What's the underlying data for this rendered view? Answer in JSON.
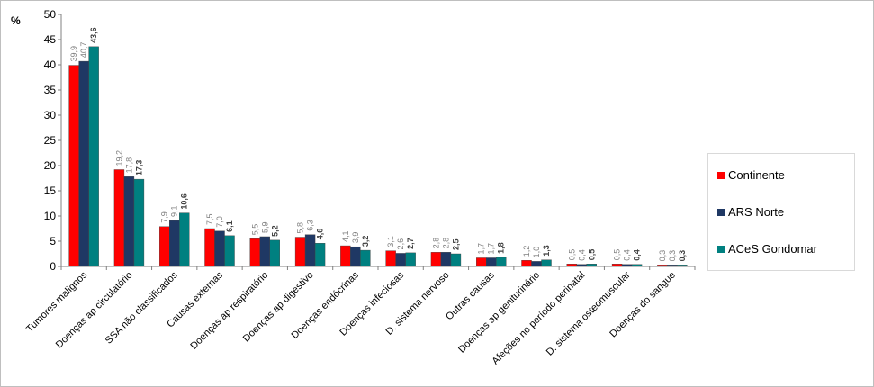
{
  "chart_data": {
    "type": "bar",
    "ylabel": "%",
    "ylim": [
      0,
      50
    ],
    "yticks": [
      0,
      5,
      10,
      15,
      20,
      25,
      30,
      35,
      40,
      45,
      50
    ],
    "grid": false,
    "legend_position": "right",
    "categories": [
      "Tumores malignos",
      "Doenças ap circulatório",
      "SSA não classificados",
      "Causas externas",
      "Doenças ap respiratório",
      "Doenças ap digestivo",
      "Doenças endócrinas",
      "Doenças infeciosas",
      "D. sistema nervoso",
      "Outras causas",
      "Doenças ap geniturinário",
      "Afeções no período perinatal",
      "D. sistema osteomuscular",
      "Doenças do sangue"
    ],
    "series": [
      {
        "name": "Continente",
        "color": "#ff0000",
        "values": [
          39.9,
          19.2,
          7.9,
          7.5,
          5.5,
          5.8,
          4.1,
          3.1,
          2.8,
          1.7,
          1.2,
          0.5,
          0.5,
          0.3
        ],
        "labels": [
          "39,9",
          "19,2",
          "7,9",
          "7,5",
          "5,5",
          "5,8",
          "4,1",
          "3,1",
          "2,8",
          "1,7",
          "1,2",
          "0,5",
          "0,5",
          "0,3"
        ]
      },
      {
        "name": "ARS Norte",
        "color": "#1f3864",
        "values": [
          40.7,
          17.8,
          9.1,
          7.0,
          5.9,
          6.3,
          3.9,
          2.6,
          2.8,
          1.7,
          1.0,
          0.4,
          0.4,
          0.3
        ],
        "labels": [
          "40,7",
          "17,8",
          "9,1",
          "7,0",
          "5,9",
          "6,3",
          "3,9",
          "2,6",
          "2,8",
          "1,7",
          "1,0",
          "0,4",
          "0,4",
          "0,3"
        ]
      },
      {
        "name": "ACeS Gondomar",
        "color": "#008080",
        "values": [
          43.6,
          17.3,
          10.6,
          6.1,
          5.2,
          4.6,
          3.2,
          2.7,
          2.5,
          1.8,
          1.3,
          0.5,
          0.4,
          0.3
        ],
        "labels": [
          "43,6",
          "17,3",
          "10,6",
          "6,1",
          "5,2",
          "4,6",
          "3,2",
          "2,7",
          "2,5",
          "1,8",
          "1,3",
          "0,5",
          "0,4",
          "0,3"
        ]
      }
    ]
  }
}
